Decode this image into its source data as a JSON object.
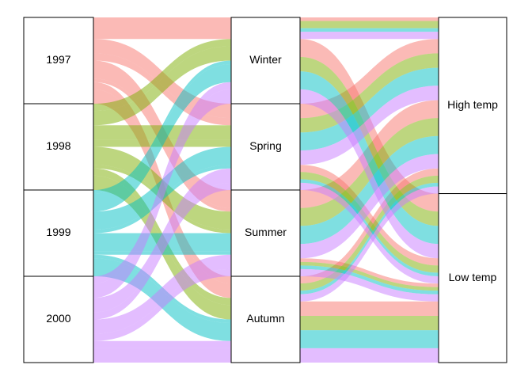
{
  "chart_data": {
    "type": "alluvial",
    "axes": [
      {
        "strata": [
          "1997",
          "1998",
          "1999",
          "2000"
        ]
      },
      {
        "strata": [
          "Winter",
          "Spring",
          "Summer",
          "Autumn"
        ]
      },
      {
        "strata": [
          "High temp",
          "Low temp"
        ]
      }
    ],
    "colors": [
      "#F8766D",
      "#7CAE00",
      "#00BFC4",
      "#C77CFF"
    ],
    "values": [
      [
        [
          1,
          5
        ],
        [
          4,
          2
        ],
        [
          5,
          1
        ],
        [
          2,
          4
        ]
      ],
      [
        [
          2,
          4
        ],
        [
          4,
          2
        ],
        [
          5,
          1
        ],
        [
          2,
          4
        ]
      ],
      [
        [
          1,
          5
        ],
        [
          5,
          1
        ],
        [
          5,
          1
        ],
        [
          1,
          5
        ]
      ],
      [
        [
          2,
          4
        ],
        [
          4,
          2
        ],
        [
          4,
          2
        ],
        [
          2,
          4
        ]
      ]
    ]
  }
}
